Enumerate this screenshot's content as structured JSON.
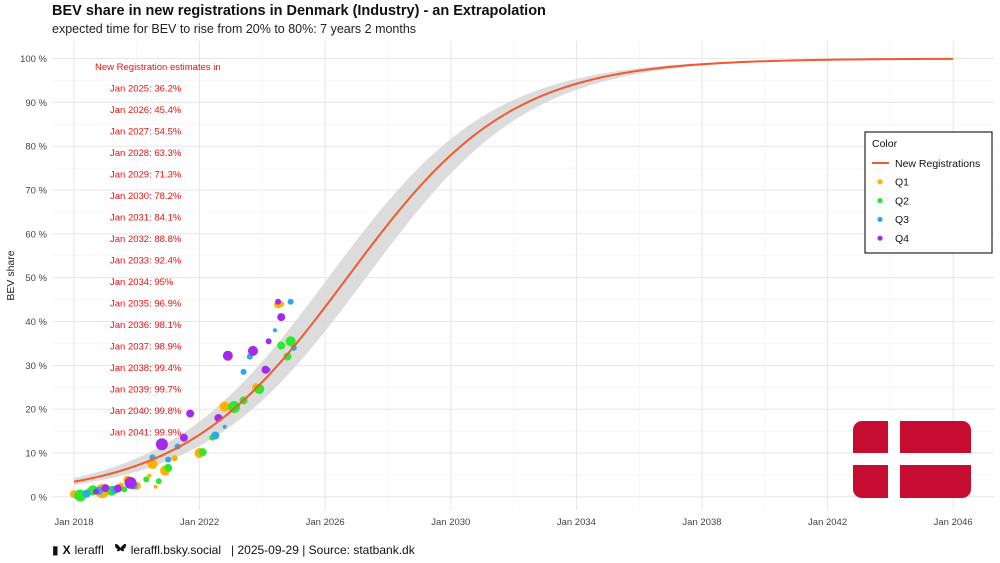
{
  "chart_data": {
    "type": "line",
    "title": "BEV share in new registrations in Denmark (Industry) - an Extrapolation",
    "subtitle": "expected time for BEV to rise from 20% to 80%: 7 years 2 months",
    "xlabel": "",
    "ylabel": "BEV share",
    "xlim": [
      2017.3,
      2047.3
    ],
    "ylim": [
      -3,
      104
    ],
    "x_ticks": [
      2018,
      2022,
      2026,
      2030,
      2034,
      2038,
      2042,
      2046
    ],
    "x_tick_labels": [
      "Jan 2018",
      "Jan 2022",
      "Jan 2026",
      "Jan 2030",
      "Jan 2034",
      "Jan 2038",
      "Jan 2042",
      "Jan 2046"
    ],
    "y_ticks": [
      0,
      10,
      20,
      30,
      40,
      50,
      60,
      70,
      80,
      90,
      100
    ],
    "y_tick_labels": [
      "0 %",
      "10 %",
      "20 %",
      "30 %",
      "40 %",
      "50 %",
      "60 %",
      "70 %",
      "80 %",
      "90 %",
      "100 %"
    ],
    "grid": true,
    "legend": {
      "title": "Color",
      "position": "right",
      "entries": [
        {
          "name": "New Registrations",
          "color": "#ef5a2f",
          "kind": "line"
        },
        {
          "name": "Q1",
          "color": "#ffb000",
          "kind": "point"
        },
        {
          "name": "Q2",
          "color": "#2ee82e",
          "kind": "point"
        },
        {
          "name": "Q3",
          "color": "#2aa7ee",
          "kind": "point"
        },
        {
          "name": "Q4",
          "color": "#a52bea",
          "kind": "point"
        }
      ]
    },
    "series": [
      {
        "name": "New Registrations",
        "color": "#ef5a2f",
        "model": {
          "form": "logistic",
          "midpoint": 2026.7,
          "rate": 0.383,
          "band_lower_midpoint": 2027.3,
          "band_upper_midpoint": 2026.1
        }
      },
      {
        "name": "Q1",
        "color": "#ffb000",
        "points": [
          [
            2018.0,
            0.6,
            4
          ],
          [
            2018.1,
            0.5,
            3
          ],
          [
            2018.5,
            1.2,
            4
          ],
          [
            2018.9,
            1.3,
            7
          ],
          [
            2019.0,
            1.1,
            3
          ],
          [
            2019.5,
            2.6,
            3
          ],
          [
            2019.7,
            3.9,
            4
          ],
          [
            2020.0,
            2.5,
            4
          ],
          [
            2020.4,
            4.8,
            2
          ],
          [
            2020.5,
            7.5,
            5
          ],
          [
            2020.6,
            2.3,
            2
          ],
          [
            2020.9,
            6.0,
            5
          ],
          [
            2021.2,
            8.8,
            3
          ],
          [
            2022.0,
            10.0,
            5
          ],
          [
            2022.8,
            20.6,
            5
          ],
          [
            2023.8,
            25.0,
            4
          ],
          [
            2024.5,
            43.9,
            4
          ],
          [
            2024.6,
            44.0,
            3
          ]
        ]
      },
      {
        "name": "Q2",
        "color": "#2ee82e",
        "points": [
          [
            2018.2,
            0.3,
            6
          ],
          [
            2018.6,
            1.5,
            5
          ],
          [
            2019.2,
            1.4,
            5
          ],
          [
            2019.6,
            1.7,
            3
          ],
          [
            2020.3,
            4.0,
            3
          ],
          [
            2020.7,
            3.6,
            3
          ],
          [
            2021.0,
            6.6,
            4
          ],
          [
            2022.1,
            10.2,
            4
          ],
          [
            2022.4,
            13.5,
            3
          ],
          [
            2023.1,
            20.5,
            6
          ],
          [
            2023.4,
            22.0,
            4
          ],
          [
            2023.9,
            24.6,
            5
          ],
          [
            2024.6,
            34.5,
            4
          ],
          [
            2024.8,
            32.0,
            4
          ],
          [
            2024.9,
            35.5,
            5
          ]
        ]
      },
      {
        "name": "Q3",
        "color": "#2aa7ee",
        "points": [
          [
            2018.4,
            0.7,
            4
          ],
          [
            2018.8,
            1.4,
            4
          ],
          [
            2019.3,
            1.6,
            4
          ],
          [
            2019.9,
            2.6,
            4
          ],
          [
            2020.5,
            9.0,
            3
          ],
          [
            2021.0,
            8.5,
            3
          ],
          [
            2021.3,
            11.5,
            3
          ],
          [
            2022.5,
            14.0,
            4
          ],
          [
            2022.8,
            16.0,
            2
          ],
          [
            2023.4,
            28.5,
            3
          ],
          [
            2023.6,
            32.0,
            3
          ],
          [
            2024.2,
            29.0,
            2
          ],
          [
            2024.4,
            38.0,
            2
          ],
          [
            2024.9,
            44.5,
            3
          ],
          [
            2025.0,
            34.0,
            3
          ]
        ]
      },
      {
        "name": "Q4",
        "color": "#a52bea",
        "points": [
          [
            2018.7,
            1.2,
            3
          ],
          [
            2019.0,
            2.0,
            4
          ],
          [
            2019.4,
            1.9,
            4
          ],
          [
            2019.8,
            3.2,
            6
          ],
          [
            2020.8,
            12.0,
            6
          ],
          [
            2021.5,
            13.5,
            4
          ],
          [
            2021.7,
            19.0,
            4
          ],
          [
            2022.6,
            18.0,
            4
          ],
          [
            2022.9,
            32.2,
            5
          ],
          [
            2023.7,
            33.3,
            5
          ],
          [
            2024.1,
            29.0,
            4
          ],
          [
            2024.2,
            35.5,
            3
          ],
          [
            2024.5,
            44.5,
            3
          ],
          [
            2024.6,
            41.0,
            4
          ]
        ]
      }
    ],
    "annotation": {
      "heading": "New Registration estimates in",
      "color": "#ee1111",
      "lines": [
        "Jan 2025: 36.2%",
        "Jan 2026: 45.4%",
        "Jan 2027: 54.5%",
        "Jan 2028: 63.3%",
        "Jan 2029: 71.3%",
        "Jan 2030: 78.2%",
        "Jan 2031: 84.1%",
        "Jan 2032: 88.8%",
        "Jan 2033: 92.4%",
        "Jan 2034: 95%",
        "Jan 2035: 96.9%",
        "Jan 2036: 98.1%",
        "Jan 2037: 98.9%",
        "Jan 2038: 99.4%",
        "Jan 2039: 99.7%",
        "Jan 2040: 99.8%",
        "Jan 2041: 99.9%"
      ]
    },
    "flag": {
      "name": "denmark-flag",
      "red": "#c60c30",
      "cross": "#ffffff"
    }
  },
  "footer": {
    "handle": "leraffl",
    "bsky": "leraffl.bsky.social",
    "meta": "| 2025-09-29 | Source: statbank.dk"
  }
}
